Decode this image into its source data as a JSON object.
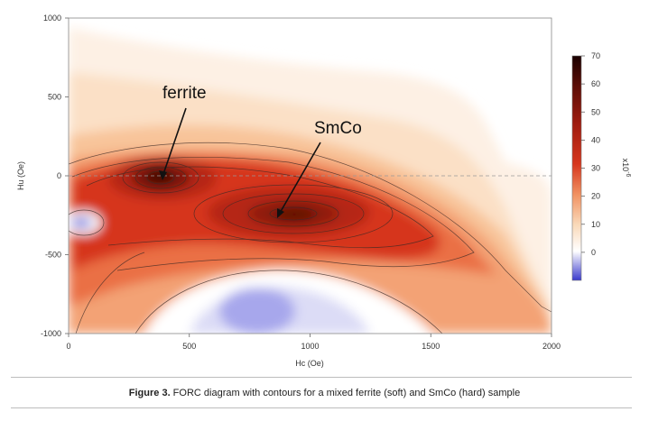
{
  "chart_data": {
    "type": "heatmap",
    "title": "",
    "xlabel": "Hc (Oe)",
    "ylabel": "Hu (Oe)",
    "xlim": [
      0,
      2000
    ],
    "ylim": [
      -1000,
      1000
    ],
    "x_ticks": [
      0,
      500,
      1000,
      1500,
      2000
    ],
    "y_ticks": [
      -1000,
      -500,
      0,
      500,
      1000
    ],
    "colorbar": {
      "label": "x10",
      "exponent": "-6",
      "ticks": [
        0,
        10,
        20,
        30,
        40,
        50,
        60,
        70
      ],
      "range": [
        -10,
        70
      ],
      "colors": {
        "negative": "#3a3acc",
        "zero": "#ffffff",
        "low": "#f6c39a",
        "mid": "#d6361d",
        "high": "#5a0d06",
        "max": "#1a0000"
      }
    },
    "peaks": [
      {
        "label": "ferrite",
        "hc": 380,
        "hu": -20,
        "value": 62
      },
      {
        "label": "SmCo",
        "hc": 950,
        "hu": -250,
        "value": 48
      }
    ],
    "negative_regions": [
      {
        "hc": 50,
        "hu": -290
      },
      {
        "hc": 720,
        "hu": -820
      }
    ],
    "annotations": [
      "ferrite",
      "SmCo"
    ],
    "grid": false,
    "reference_line": {
      "hu": 0,
      "style": "dashed"
    }
  },
  "caption": {
    "bold": "Figure 3.",
    "text": " FORC diagram with contours for a mixed ferrite (soft) and SmCo (hard) sample"
  }
}
